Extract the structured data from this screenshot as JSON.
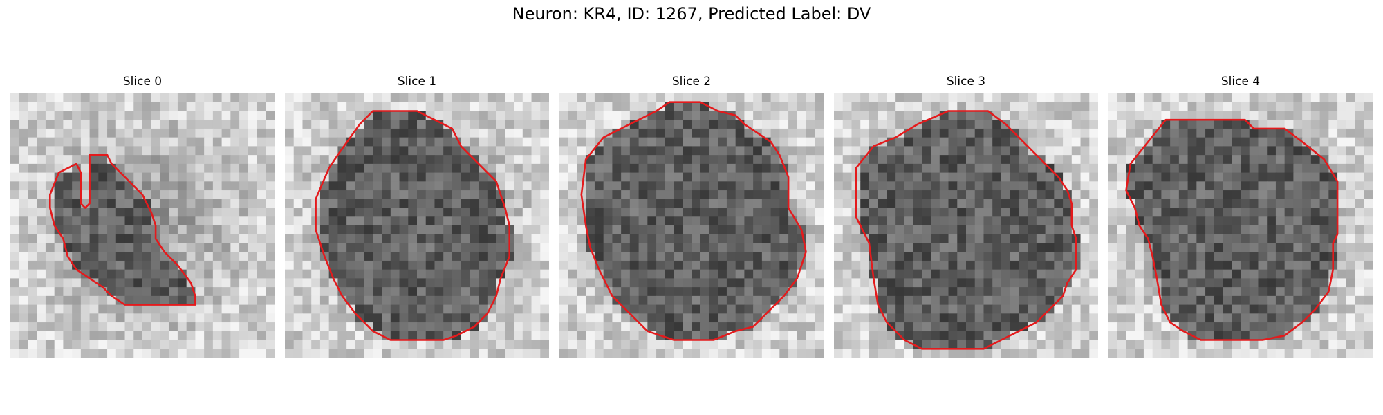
{
  "figure": {
    "title": "Neuron: KR4, ID: 1267, Predicted Label: DV"
  },
  "panels": [
    {
      "title": "Slice 0"
    },
    {
      "title": "Slice 1"
    },
    {
      "title": "Slice 2"
    },
    {
      "title": "Slice 3"
    },
    {
      "title": "Slice 4"
    }
  ],
  "colors": {
    "contour": "#e41a1c",
    "background": "#ffffff"
  }
}
